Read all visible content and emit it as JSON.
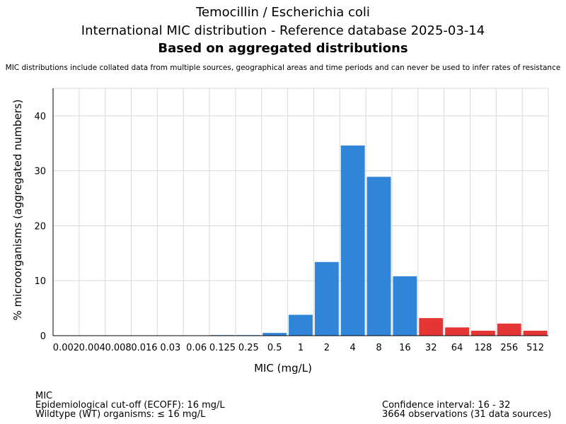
{
  "header": {
    "title_line1": "Temocillin / Escherichia coli",
    "title_line2": "International MIC distribution - Reference database 2025-03-14",
    "title_line3": "Based on aggregated distributions",
    "note": "MIC distributions include collated data from multiple sources, geographical areas and time periods and can never be used to infer rates of resistance"
  },
  "footer": {
    "left": [
      "MIC",
      "Epidemiological cut-off (ECOFF): 16 mg/L",
      "Wildtype (WT) organisms: ≤ 16 mg/L"
    ],
    "right": [
      "Confidence interval: 16 - 32",
      "3664 observations (31 data sources)"
    ]
  },
  "chart_data": {
    "type": "bar",
    "title": "Temocillin / Escherichia coli",
    "xlabel": "MIC (mg/L)",
    "ylabel": "% microorganisms (aggregated numbers)",
    "ylim": [
      0,
      45
    ],
    "yticks": [
      0,
      10,
      20,
      30,
      40
    ],
    "grid": true,
    "categories": [
      "0.002",
      "0.004",
      "0.008",
      "0.016",
      "0.03",
      "0.06",
      "0.125",
      "0.25",
      "0.5",
      "1",
      "2",
      "4",
      "8",
      "16",
      "32",
      "64",
      "128",
      "256",
      "512"
    ],
    "values": [
      0,
      0,
      0,
      0,
      0,
      0,
      0.1,
      0.1,
      0.5,
      3.8,
      13.4,
      34.6,
      28.9,
      10.8,
      3.2,
      1.5,
      0.9,
      2.2,
      0.9
    ],
    "colors": {
      "wildtype": "#3085d8",
      "non_wildtype": "#e53535"
    },
    "ecoff_index": 13
  }
}
